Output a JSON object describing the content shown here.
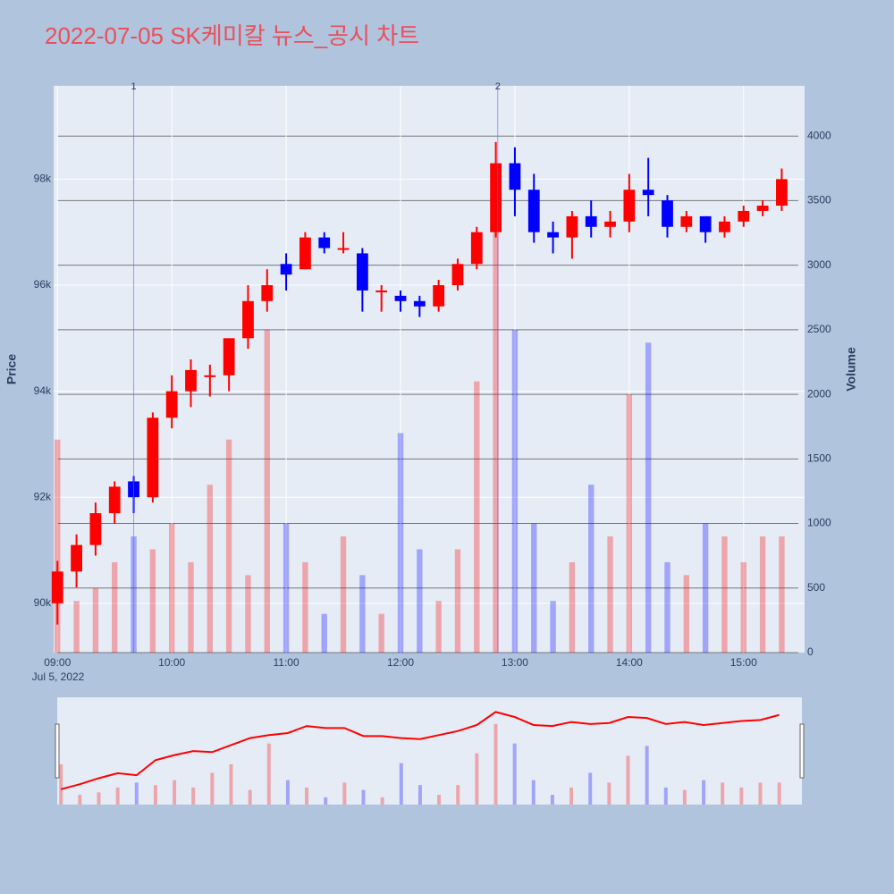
{
  "chart_data": {
    "type": "candlestick",
    "title": "2022-07-05 SK케미칼 뉴스_공시 차트",
    "x_date_label": "Jul 5, 2022",
    "ylabel": "Price",
    "y2label": "Volume",
    "x": [
      "09:00",
      "09:10",
      "09:20",
      "09:30",
      "09:40",
      "09:50",
      "10:00",
      "10:10",
      "10:20",
      "10:30",
      "10:40",
      "10:50",
      "11:00",
      "11:10",
      "11:20",
      "11:30",
      "11:40",
      "11:50",
      "12:00",
      "12:10",
      "12:20",
      "12:30",
      "12:40",
      "12:50",
      "13:00",
      "13:10",
      "13:20",
      "13:30",
      "13:40",
      "13:50",
      "14:00",
      "14:10",
      "14:20",
      "14:30",
      "14:40",
      "14:50",
      "15:00",
      "15:10",
      "15:20"
    ],
    "open": [
      90000,
      90600,
      91100,
      91700,
      92300,
      92000,
      93500,
      94000,
      94300,
      94300,
      95000,
      95700,
      96400,
      96300,
      96900,
      96700,
      96600,
      95900,
      95800,
      95700,
      95600,
      96000,
      96400,
      97000,
      98300,
      97800,
      97000,
      96900,
      97300,
      97100,
      97200,
      97800,
      97600,
      97100,
      97300,
      97000,
      97200,
      97400,
      97500
    ],
    "high": [
      90800,
      91300,
      91900,
      92300,
      92400,
      93600,
      94300,
      94600,
      94500,
      95000,
      96000,
      96300,
      96600,
      97000,
      97000,
      97000,
      96700,
      96000,
      95900,
      95800,
      96100,
      96500,
      97100,
      98700,
      98600,
      98100,
      97200,
      97400,
      97600,
      97400,
      98100,
      98400,
      97700,
      97400,
      97300,
      97300,
      97500,
      97600,
      98200
    ],
    "low": [
      89600,
      90300,
      90900,
      91500,
      91700,
      91900,
      93300,
      93700,
      93900,
      94000,
      94800,
      95500,
      95900,
      96300,
      96600,
      96600,
      95500,
      95500,
      95500,
      95400,
      95500,
      95900,
      96300,
      96900,
      97300,
      96800,
      96600,
      96500,
      96900,
      96900,
      97000,
      97300,
      96900,
      97000,
      96800,
      96900,
      97100,
      97300,
      97400
    ],
    "close": [
      90600,
      91100,
      91700,
      92200,
      92000,
      93500,
      94000,
      94400,
      94300,
      95000,
      95700,
      96000,
      96200,
      96900,
      96700,
      96700,
      95900,
      95900,
      95700,
      95600,
      96000,
      96400,
      97000,
      98300,
      97800,
      97000,
      96900,
      97300,
      97100,
      97200,
      97800,
      97700,
      97100,
      97300,
      97000,
      97200,
      97400,
      97500,
      98000
    ],
    "volume": [
      1650,
      400,
      500,
      700,
      900,
      800,
      1000,
      700,
      1300,
      1650,
      600,
      2500,
      1000,
      700,
      300,
      900,
      600,
      300,
      1700,
      800,
      400,
      800,
      2100,
      3300,
      2500,
      1000,
      400,
      700,
      1300,
      900,
      2000,
      2400,
      700,
      600,
      1000,
      900,
      700,
      900,
      900
    ],
    "increasing_color": "#ff0000",
    "decreasing_color": "#0000ff",
    "xlim": [
      "08:58",
      "15:32"
    ],
    "xticks": [
      "09:00",
      "10:00",
      "11:00",
      "12:00",
      "13:00",
      "14:00",
      "15:00"
    ],
    "ylim": [
      89070,
      99760
    ],
    "yticks": [
      {
        "value": 90000,
        "label": "90k"
      },
      {
        "value": 92000,
        "label": "92k"
      },
      {
        "value": 94000,
        "label": "94k"
      },
      {
        "value": 96000,
        "label": "96k"
      },
      {
        "value": 98000,
        "label": "98k"
      }
    ],
    "y2lim": [
      0,
      4389
    ],
    "y2ticks": [
      0,
      500,
      1000,
      1500,
      2000,
      2500,
      3000,
      3500,
      4000
    ],
    "annotations": [
      {
        "x": "09:40",
        "label": "1"
      },
      {
        "x": "12:51",
        "label": "2"
      }
    ],
    "grid": true
  }
}
